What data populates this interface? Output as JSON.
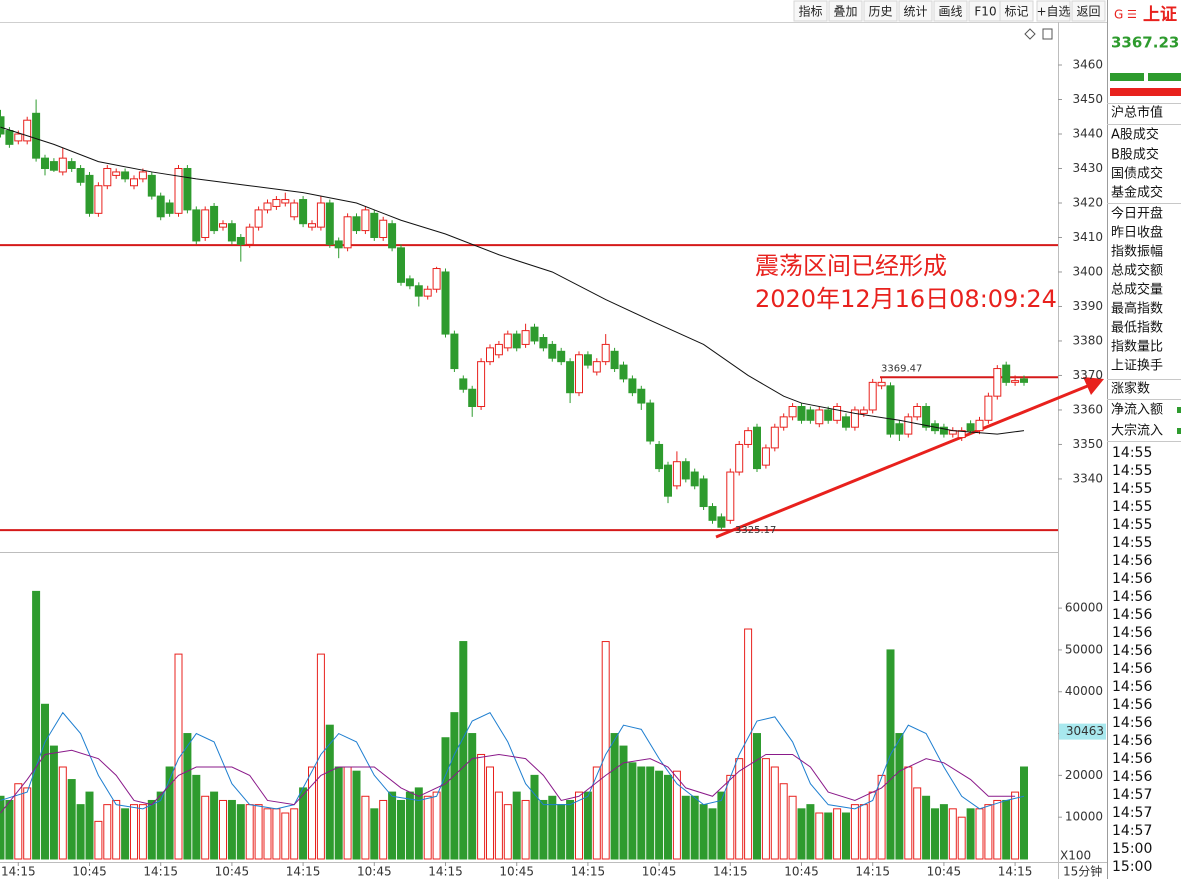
{
  "toolbar": [
    "指标",
    "叠加",
    "历史",
    "统计",
    "画线",
    "F10",
    "标记",
    "+自选",
    "返回"
  ],
  "side_panel": {
    "prefix": "G",
    "title": "上证",
    "price": 3367.23,
    "items": [
      "沪总市值",
      "A股成交",
      "B股成交",
      "国债成交",
      "基金成交",
      "今日开盘",
      "昨日收盘",
      "指数振幅",
      "总成交额",
      "总成交量",
      "最高指数",
      "最低指数",
      "指数量比",
      "上证换手",
      "涨家数",
      "净流入额",
      "大宗流入"
    ],
    "times": [
      "14:55",
      "14:55",
      "14:55",
      "14:55",
      "14:55",
      "14:55",
      "14:56",
      "14:56",
      "14:56",
      "14:56",
      "14:56",
      "14:56",
      "14:56",
      "14:56",
      "14:56",
      "14:56",
      "14:56",
      "14:56",
      "14:56",
      "14:57",
      "14:57",
      "14:57",
      "15:00",
      "15:00"
    ]
  },
  "chart_data": {
    "type": "candlestick",
    "interval": "15分钟",
    "categories": [
      null,
      null,
      "14:15",
      null,
      null,
      null,
      null,
      null,
      null,
      null,
      "10:45",
      null,
      null,
      null,
      null,
      null,
      null,
      null,
      "14:15",
      null,
      null,
      null,
      null,
      null,
      null,
      null,
      "10:45",
      null,
      null,
      null,
      null,
      null,
      null,
      null,
      "14:15",
      null,
      null,
      null,
      null,
      null,
      null,
      null,
      "10:45",
      null,
      null,
      null,
      null,
      null,
      null,
      null,
      "14:15",
      null,
      null,
      null,
      null,
      null,
      null,
      null,
      "10:45",
      null,
      null,
      null,
      null,
      null,
      null,
      null,
      "14:15",
      null,
      null,
      null,
      null,
      null,
      null,
      null,
      "10:45",
      null,
      null,
      null,
      null,
      null,
      null,
      null,
      "14:15",
      null,
      null,
      null,
      null,
      null,
      null,
      null,
      "10:45",
      null,
      null,
      null,
      null,
      null,
      null,
      null,
      "14:15",
      null,
      null,
      null,
      null,
      null,
      null,
      null,
      "10:45",
      null,
      null,
      null,
      null,
      null,
      null,
      null,
      "14:15",
      null
    ],
    "candles": [
      [
        3445,
        3447,
        3439,
        3440
      ],
      [
        3441,
        3442,
        3436,
        3437
      ],
      [
        3438,
        3441,
        3437,
        3440
      ],
      [
        3438,
        3445,
        3437,
        3444
      ],
      [
        3446,
        3450,
        3432,
        3433
      ],
      [
        3433,
        3434,
        3428,
        3430
      ],
      [
        3432,
        3433,
        3429,
        3429.5
      ],
      [
        3429,
        3436,
        3428,
        3433
      ],
      [
        3432,
        3433,
        3429,
        3430
      ],
      [
        3430,
        3431,
        3425,
        3426
      ],
      [
        3428,
        3429,
        3416,
        3417
      ],
      [
        3417,
        3426,
        3416,
        3425
      ],
      [
        3425,
        3431,
        3424,
        3430
      ],
      [
        3428,
        3430,
        3427,
        3429
      ],
      [
        3429,
        3430,
        3426,
        3427
      ],
      [
        3425,
        3428,
        3424,
        3427
      ],
      [
        3427,
        3430,
        3426,
        3429
      ],
      [
        3428,
        3429,
        3421,
        3422
      ],
      [
        3422,
        3423,
        3415,
        3416
      ],
      [
        3420,
        3421,
        3416,
        3417
      ],
      [
        3417,
        3431,
        3416,
        3430
      ],
      [
        3430,
        3431,
        3417,
        3418
      ],
      [
        3418,
        3419,
        3408,
        3409
      ],
      [
        3410,
        3419,
        3409,
        3418
      ],
      [
        3419,
        3420,
        3411,
        3412
      ],
      [
        3413,
        3415,
        3412,
        3414
      ],
      [
        3414,
        3415,
        3408,
        3409
      ],
      [
        3410,
        3411,
        3403,
        3408
      ],
      [
        3408,
        3414,
        3407,
        3413
      ],
      [
        3413,
        3419,
        3412,
        3418
      ],
      [
        3418,
        3421,
        3417,
        3420
      ],
      [
        3419,
        3422,
        3418,
        3421
      ],
      [
        3420,
        3423,
        3419,
        3421
      ],
      [
        3416,
        3421,
        3415,
        3420
      ],
      [
        3421,
        3422,
        3413,
        3414
      ],
      [
        3413,
        3415,
        3412,
        3414
      ],
      [
        3413,
        3422,
        3412,
        3420
      ],
      [
        3420,
        3421,
        3407,
        3408
      ],
      [
        3409,
        3410,
        3404,
        3407
      ],
      [
        3407,
        3417,
        3406,
        3416
      ],
      [
        3416,
        3417,
        3411,
        3412
      ],
      [
        3412,
        3419,
        3411,
        3418
      ],
      [
        3417,
        3418,
        3409,
        3410
      ],
      [
        3410,
        3416,
        3409,
        3415
      ],
      [
        3414,
        3415,
        3406,
        3407
      ],
      [
        3407,
        3408,
        3396,
        3397
      ],
      [
        3398,
        3399,
        3395,
        3396
      ],
      [
        3396,
        3397,
        3390,
        3393
      ],
      [
        3393,
        3396,
        3392,
        3395
      ],
      [
        3395,
        3401.5,
        3394,
        3401
      ],
      [
        3400,
        3401,
        3381,
        3382
      ],
      [
        3382,
        3383,
        3371,
        3372
      ],
      [
        3369,
        3370,
        3365,
        3366
      ],
      [
        3366,
        3367,
        3358,
        3361
      ],
      [
        3361,
        3375,
        3360,
        3374
      ],
      [
        3374,
        3379,
        3373,
        3378
      ],
      [
        3376,
        3380,
        3375,
        3379
      ],
      [
        3378,
        3383,
        3377,
        3382
      ],
      [
        3382,
        3383,
        3377,
        3378
      ],
      [
        3379,
        3385,
        3378,
        3383
      ],
      [
        3384,
        3385,
        3379,
        3380
      ],
      [
        3381,
        3382,
        3377,
        3378
      ],
      [
        3379,
        3380,
        3374,
        3375
      ],
      [
        3377,
        3378,
        3373,
        3374
      ],
      [
        3374,
        3375,
        3362,
        3365
      ],
      [
        3365,
        3377,
        3364,
        3376
      ],
      [
        3376,
        3377,
        3372,
        3373
      ],
      [
        3371,
        3375,
        3370,
        3374
      ],
      [
        3374,
        3382,
        3373,
        3379
      ],
      [
        3377,
        3378,
        3371,
        3372
      ],
      [
        3373,
        3374,
        3368,
        3369
      ],
      [
        3369,
        3370,
        3364,
        3365
      ],
      [
        3366,
        3367,
        3360,
        3362
      ],
      [
        3362,
        3363,
        3350,
        3351
      ],
      [
        3350,
        3351,
        3342,
        3343
      ],
      [
        3344,
        3345,
        3333,
        3335
      ],
      [
        3338,
        3348,
        3337,
        3345
      ],
      [
        3345,
        3346,
        3339,
        3340
      ],
      [
        3342,
        3343,
        3337,
        3338
      ],
      [
        3340,
        3341,
        3331,
        3332
      ],
      [
        3332,
        3333,
        3327,
        3328
      ],
      [
        3329,
        3330,
        3325.17,
        3326
      ],
      [
        3328,
        3343,
        3327,
        3342
      ],
      [
        3342,
        3351,
        3341,
        3350
      ],
      [
        3350,
        3355,
        3349,
        3354
      ],
      [
        3355,
        3356,
        3342,
        3343
      ],
      [
        3344,
        3350,
        3343,
        3349
      ],
      [
        3349,
        3356,
        3348,
        3355
      ],
      [
        3355,
        3359,
        3354,
        3358
      ],
      [
        3358,
        3362,
        3357,
        3361
      ],
      [
        3361,
        3362,
        3356,
        3357
      ],
      [
        3360,
        3361,
        3356,
        3357
      ],
      [
        3356,
        3361,
        3355,
        3360
      ],
      [
        3360,
        3361,
        3356,
        3357
      ],
      [
        3357,
        3362,
        3356,
        3361
      ],
      [
        3358,
        3359,
        3354,
        3355
      ],
      [
        3355,
        3361,
        3354,
        3360
      ],
      [
        3359,
        3361,
        3358,
        3360
      ],
      [
        3360,
        3369,
        3359,
        3368
      ],
      [
        3367,
        3369.47,
        3366,
        3368
      ],
      [
        3367,
        3368,
        3352,
        3353
      ],
      [
        3356,
        3357,
        3351,
        3353
      ],
      [
        3353,
        3359,
        3352,
        3358
      ],
      [
        3358,
        3362,
        3357,
        3361
      ],
      [
        3361,
        3362,
        3354,
        3355
      ],
      [
        3356,
        3357,
        3353,
        3354
      ],
      [
        3355,
        3356,
        3352,
        3353
      ],
      [
        3353,
        3355,
        3352,
        3354
      ],
      [
        3352,
        3355,
        3351,
        3354
      ],
      [
        3356,
        3357,
        3353,
        3354
      ],
      [
        3354,
        3358,
        3353,
        3357
      ],
      [
        3357,
        3365,
        3356,
        3364
      ],
      [
        3364,
        3373,
        3363,
        3372
      ],
      [
        3373,
        3374,
        3367,
        3368
      ],
      [
        3368,
        3370,
        3367,
        3368.5
      ],
      [
        3369,
        3370,
        3367,
        3368
      ]
    ],
    "up_color": "#e8211d",
    "down_color": "#2e9b2e",
    "ylim": [
      3319.4,
      3471.6
    ],
    "yticks": [
      3340,
      3350,
      3360,
      3370,
      3380,
      3390,
      3400,
      3410,
      3420,
      3430,
      3440,
      3450,
      3460
    ],
    "ma": {
      "color": "#111111",
      "x": [
        0,
        6,
        11,
        17,
        22,
        28,
        34,
        40,
        45,
        50,
        56,
        62,
        68,
        73,
        79,
        84,
        88,
        90,
        96,
        101,
        107,
        112,
        115
      ],
      "values": [
        3442,
        3437,
        3432,
        3429,
        3427,
        3425,
        3423,
        3420,
        3415,
        3411,
        3405,
        3400,
        3392,
        3386,
        3379,
        3370,
        3364,
        3362,
        3359,
        3357,
        3354,
        3353,
        3354
      ]
    },
    "reference_lines": [
      3407.8
    ],
    "price_marks": [
      3369.47,
      3325.17
    ],
    "annotations": [
      "震荡区间已经形成",
      "2020年12月16日08:09:24"
    ],
    "annotation_color": "#e8211d",
    "volume": {
      "unit": "X100",
      "marker": 30463,
      "ylim": [
        0,
        72700
      ],
      "yticks": [
        10000,
        20000,
        30000,
        40000,
        50000,
        60000
      ],
      "values": [
        15000,
        14000,
        18000,
        17000,
        64000,
        37000,
        27000,
        22000,
        19000,
        13000,
        16000,
        9000,
        13000,
        14000,
        12000,
        13000,
        13000,
        14000,
        16000,
        22000,
        49000,
        30000,
        20000,
        15000,
        16000,
        14000,
        14000,
        13000,
        13000,
        13000,
        12000,
        12000,
        11000,
        12000,
        17000,
        22000,
        49000,
        32000,
        22000,
        22000,
        21000,
        15000,
        12000,
        14000,
        16000,
        14000,
        16000,
        17000,
        15000,
        16000,
        29000,
        35000,
        52000,
        30000,
        25000,
        22000,
        16000,
        13000,
        16000,
        14000,
        20000,
        14000,
        15000,
        13000,
        14000,
        16000,
        16000,
        22000,
        52000,
        30000,
        27000,
        23000,
        22000,
        22000,
        21000,
        20000,
        21000,
        15000,
        15000,
        13000,
        12000,
        16000,
        20000,
        24000,
        55000,
        30000,
        24000,
        22000,
        18000,
        15000,
        12000,
        13000,
        11000,
        11000,
        12000,
        11000,
        13000,
        13000,
        16000,
        20000,
        50000,
        30000,
        22000,
        17000,
        15000,
        12000,
        13000,
        12000,
        10000,
        12000,
        12000,
        13000,
        14000,
        14000,
        16000,
        22000
      ],
      "series": [
        {
          "color": "#1f7fd0",
          "x": [
            0,
            3,
            5,
            7,
            9,
            11,
            13,
            16,
            18,
            20,
            22,
            24,
            26,
            28,
            31,
            33,
            36,
            38,
            40,
            42,
            44,
            47,
            49,
            51,
            53,
            55,
            57,
            59,
            61,
            64,
            66,
            68,
            70,
            72,
            74,
            76,
            79,
            81,
            83,
            85,
            87,
            89,
            91,
            93,
            96,
            98,
            100,
            102,
            104,
            106,
            108,
            110,
            113,
            115
          ],
          "values": [
            14000,
            16000,
            28000,
            35000,
            30000,
            20000,
            13000,
            12000,
            14000,
            24000,
            30000,
            28000,
            18000,
            13000,
            12000,
            13000,
            25000,
            30000,
            28000,
            20000,
            15000,
            14000,
            15000,
            25000,
            33000,
            35000,
            28000,
            18000,
            13000,
            13000,
            15000,
            25000,
            32000,
            31000,
            24000,
            18000,
            13000,
            14000,
            25000,
            33000,
            34000,
            28000,
            18000,
            13000,
            12000,
            14000,
            25000,
            32000,
            30000,
            22000,
            15000,
            12000,
            14000,
            15000
          ]
        },
        {
          "color": "#8a1a8a",
          "x": [
            0,
            3,
            5,
            8,
            11,
            13,
            15,
            17,
            20,
            22,
            26,
            28,
            30,
            33,
            36,
            38,
            42,
            45,
            47,
            50,
            53,
            56,
            59,
            61,
            63,
            65,
            68,
            70,
            73,
            75,
            77,
            80,
            83,
            86,
            89,
            91,
            93,
            96,
            99,
            101,
            104,
            106,
            109,
            111,
            114
          ],
          "values": [
            11000,
            19000,
            25000,
            26000,
            24000,
            20000,
            14000,
            13000,
            20000,
            22000,
            22000,
            20000,
            14000,
            13000,
            20000,
            22000,
            22000,
            17000,
            15000,
            18000,
            24000,
            25000,
            24000,
            20000,
            14000,
            15000,
            20000,
            23000,
            24000,
            22000,
            17000,
            15000,
            21000,
            25000,
            25000,
            22000,
            16000,
            14000,
            17000,
            21000,
            24000,
            23000,
            19000,
            15000,
            15000
          ]
        }
      ]
    }
  }
}
